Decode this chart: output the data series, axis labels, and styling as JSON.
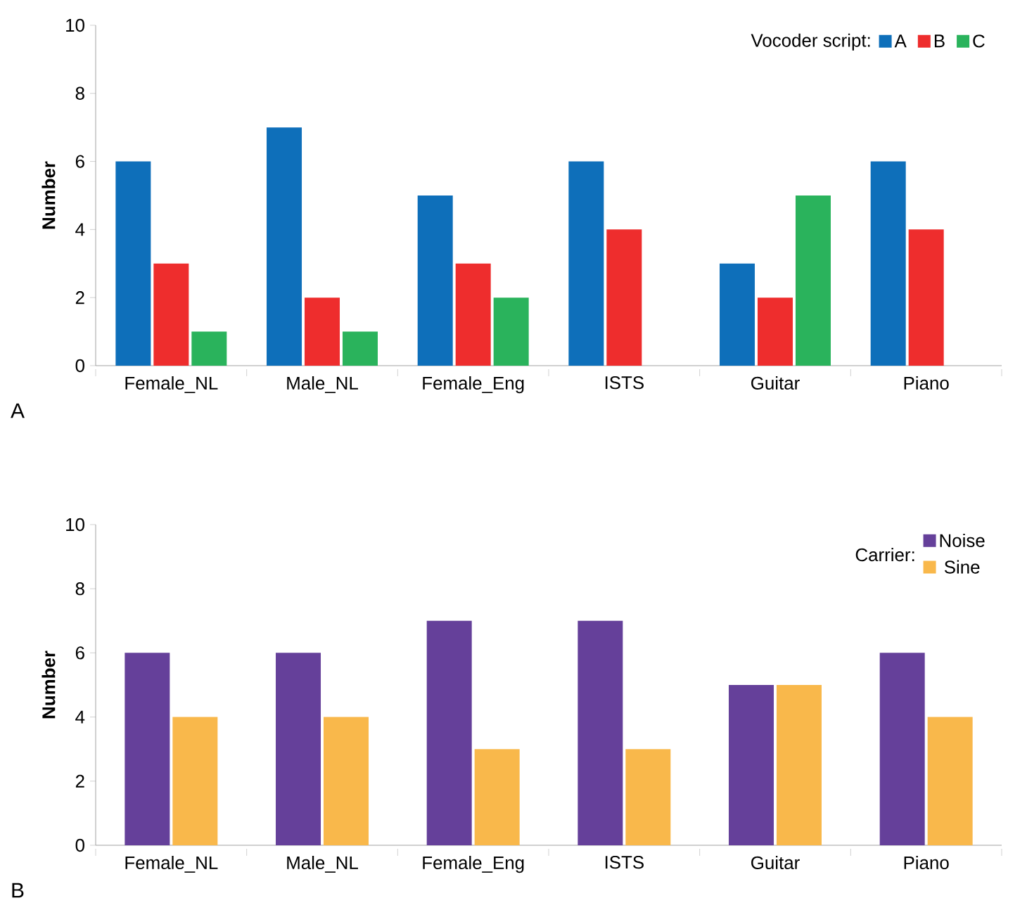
{
  "chart_data": [
    {
      "type": "bar",
      "ylabel": "Number",
      "legend_title": "Vocoder script:",
      "annotations": [
        "A"
      ],
      "categories": [
        "Female_NL",
        "Male_NL",
        "Female_Eng",
        "ISTS",
        "Guitar",
        "Piano"
      ],
      "series": [
        {
          "name": "A",
          "color": "#0e6fba",
          "values": [
            6,
            7,
            5,
            6,
            3,
            6
          ]
        },
        {
          "name": "B",
          "color": "#ee2d2d",
          "values": [
            3,
            2,
            3,
            4,
            2,
            4
          ]
        },
        {
          "name": "C",
          "color": "#2ab35c",
          "values": [
            1,
            1,
            2,
            0,
            5,
            0
          ]
        }
      ],
      "ylim": [
        0,
        10
      ],
      "yticks": [
        0,
        2,
        4,
        6,
        8,
        10
      ],
      "legend": "top right",
      "grid": false
    },
    {
      "type": "bar",
      "ylabel": "Number",
      "legend_title": "Carrier:",
      "annotations": [
        "B"
      ],
      "categories": [
        "Female_NL",
        "Male_NL",
        "Female_Eng",
        "ISTS",
        "Guitar",
        "Piano"
      ],
      "series": [
        {
          "name": "Noise",
          "color": "#65409a",
          "values": [
            6,
            6,
            7,
            7,
            5,
            6
          ]
        },
        {
          "name": "Sine",
          "color": "#f9b84b",
          "values": [
            4,
            4,
            3,
            3,
            5,
            4
          ]
        }
      ],
      "ylim": [
        0,
        10
      ],
      "yticks": [
        0,
        2,
        4,
        6,
        8,
        10
      ],
      "legend": "top right",
      "grid": false
    }
  ]
}
